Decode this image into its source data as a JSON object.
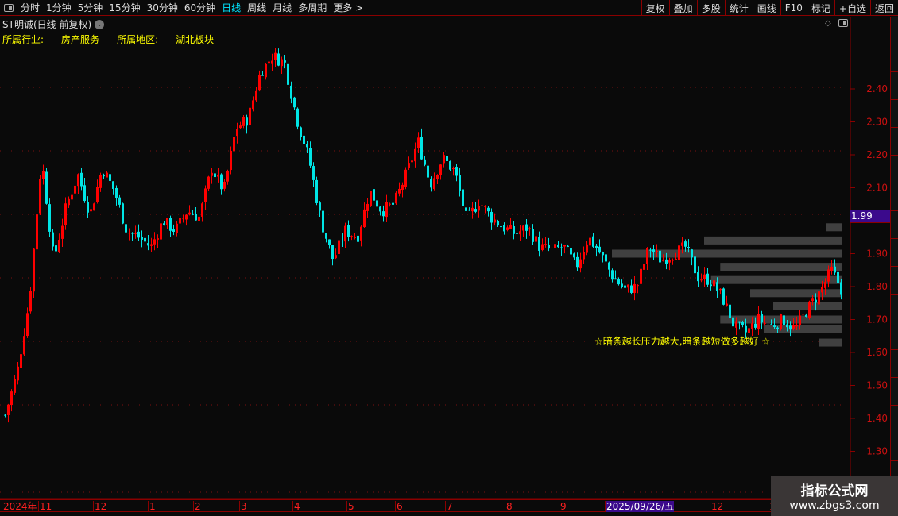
{
  "toolbar": {
    "periods": [
      "分时",
      "1分钟",
      "5分钟",
      "15分钟",
      "30分钟",
      "60分钟",
      "日线",
      "周线",
      "月线",
      "多周期",
      "更多 >"
    ],
    "active_period": "日线",
    "tools": [
      "复权",
      "叠加",
      "多股",
      "统计",
      "画线",
      "F10",
      "标记",
      "+自选",
      "返回"
    ]
  },
  "header": {
    "title": "ST明诚(日线 前复权)",
    "industry_label": "所属行业:",
    "industry": "房产服务",
    "region_label": "所属地区:",
    "region": "湖北板块"
  },
  "current_price": "1.99",
  "annotation": "☆暗条越长压力越大,暗条越短做多越好 ☆",
  "time_axis": {
    "labels": [
      "2024年",
      "11",
      "12",
      "1",
      "2",
      "3",
      "4",
      "5",
      "6",
      "7",
      "8",
      "9",
      "2025/09/26/五",
      "12",
      "1"
    ],
    "highlight": "2025/09/26/五"
  },
  "watermark": {
    "title": "指标公式网",
    "url": "www.zbgs3.com"
  },
  "colors": {
    "up": "#ff0000",
    "down": "#00e5e5",
    "axis": "#8b0000",
    "profile": "#404040",
    "highlight": "#3b0a8c"
  },
  "chart_data": {
    "type": "candlestick",
    "y_ticks": [
      "2.40",
      "2.30",
      "2.20",
      "2.10",
      "1.90",
      "1.80",
      "1.70",
      "1.60",
      "1.50",
      "1.40",
      "1.30"
    ],
    "ylim": [
      1.22,
      2.62
    ],
    "approx_close_path": [
      1.41,
      1.54,
      1.76,
      2.19,
      1.88,
      2.04,
      2.14,
      2.02,
      2.16,
      2.09,
      1.97,
      1.95,
      1.92,
      2.0,
      1.97,
      2.03,
      2.01,
      2.16,
      2.09,
      2.28,
      2.31,
      2.45,
      2.5,
      2.48,
      2.31,
      2.19,
      2.0,
      1.88,
      1.97,
      1.95,
      2.09,
      2.03,
      2.05,
      2.14,
      2.24,
      2.11,
      2.19,
      2.15,
      2.0,
      2.06,
      2.01,
      1.98,
      1.96,
      1.98,
      1.92,
      1.91,
      1.92,
      1.86,
      1.95,
      1.9,
      1.83,
      1.79,
      1.8,
      1.92,
      1.88,
      1.9,
      1.92,
      1.83,
      1.82,
      1.77,
      1.68,
      1.66,
      1.7,
      1.68,
      1.7,
      1.67,
      1.73,
      1.78,
      1.85,
      1.78
    ],
    "volume_profile": [
      {
        "price": 1.98,
        "strength": 0.07
      },
      {
        "price": 1.94,
        "strength": 0.6
      },
      {
        "price": 1.9,
        "strength": 1.0
      },
      {
        "price": 1.86,
        "strength": 0.53
      },
      {
        "price": 1.82,
        "strength": 0.57
      },
      {
        "price": 1.78,
        "strength": 0.4
      },
      {
        "price": 1.74,
        "strength": 0.3
      },
      {
        "price": 1.7,
        "strength": 0.53
      },
      {
        "price": 1.67,
        "strength": 0.34
      },
      {
        "price": 1.63,
        "strength": 0.1
      }
    ]
  }
}
